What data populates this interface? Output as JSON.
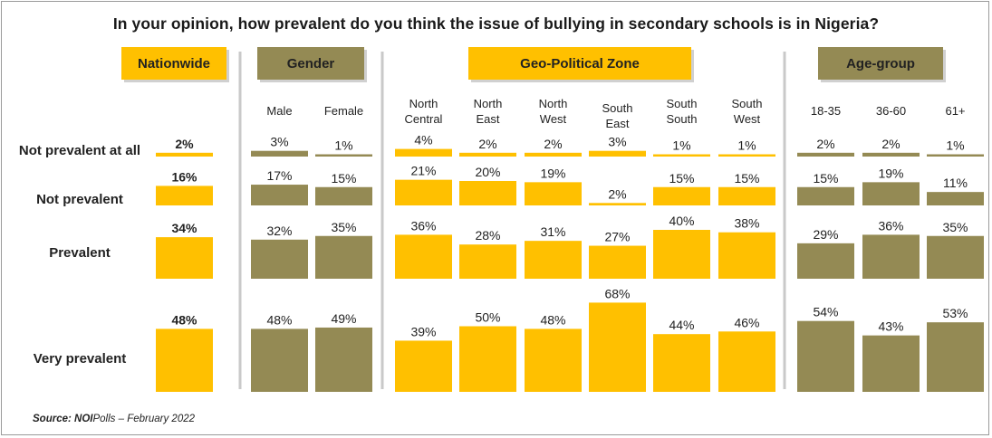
{
  "title": "In your opinion, how prevalent do you think the issue of bullying in secondary schools is in Nigeria?",
  "source": {
    "label": "Source:",
    "org": "NOI",
    "org_suffix": "Polls",
    "date": "– February 2022"
  },
  "colors": {
    "gold": "#FFC000",
    "olive": "#948A54",
    "separator": "#c9c9c9",
    "text": "#222222"
  },
  "chart_data": {
    "type": "bar",
    "title": "In your opinion, how prevalent do you think the issue of bullying in secondary schools is in Nigeria?",
    "categories": [
      "Not prevalent at all",
      "Not prevalent",
      "Prevalent",
      "Very prevalent"
    ],
    "groups": [
      {
        "header": "Nationwide",
        "color": "gold",
        "series": [
          {
            "name": "",
            "values": [
              2,
              16,
              34,
              48
            ]
          }
        ]
      },
      {
        "header": "Gender",
        "color": "olive",
        "series": [
          {
            "name": "Male",
            "values": [
              3,
              17,
              32,
              48
            ]
          },
          {
            "name": "Female",
            "values": [
              1,
              15,
              35,
              49
            ]
          }
        ]
      },
      {
        "header": "Geo-Political  Zone",
        "color": "gold",
        "series": [
          {
            "name": "North Central",
            "values": [
              4,
              21,
              36,
              39
            ]
          },
          {
            "name": "North East",
            "values": [
              2,
              20,
              28,
              50
            ]
          },
          {
            "name": "North West",
            "values": [
              2,
              19,
              31,
              48
            ]
          },
          {
            "name": "South East",
            "values": [
              3,
              2,
              27,
              68
            ]
          },
          {
            "name": "South South",
            "values": [
              1,
              15,
              40,
              44
            ]
          },
          {
            "name": "South West",
            "values": [
              1,
              15,
              38,
              46
            ]
          }
        ]
      },
      {
        "header": "Age-group",
        "color": "olive",
        "series": [
          {
            "name": "18-35",
            "values": [
              2,
              15,
              29,
              54
            ]
          },
          {
            "name": "36-60",
            "values": [
              2,
              19,
              36,
              43
            ]
          },
          {
            "name": "61+",
            "values": [
              1,
              11,
              35,
              53
            ]
          }
        ]
      }
    ],
    "unit": "%",
    "grid": false,
    "legend": "none"
  }
}
